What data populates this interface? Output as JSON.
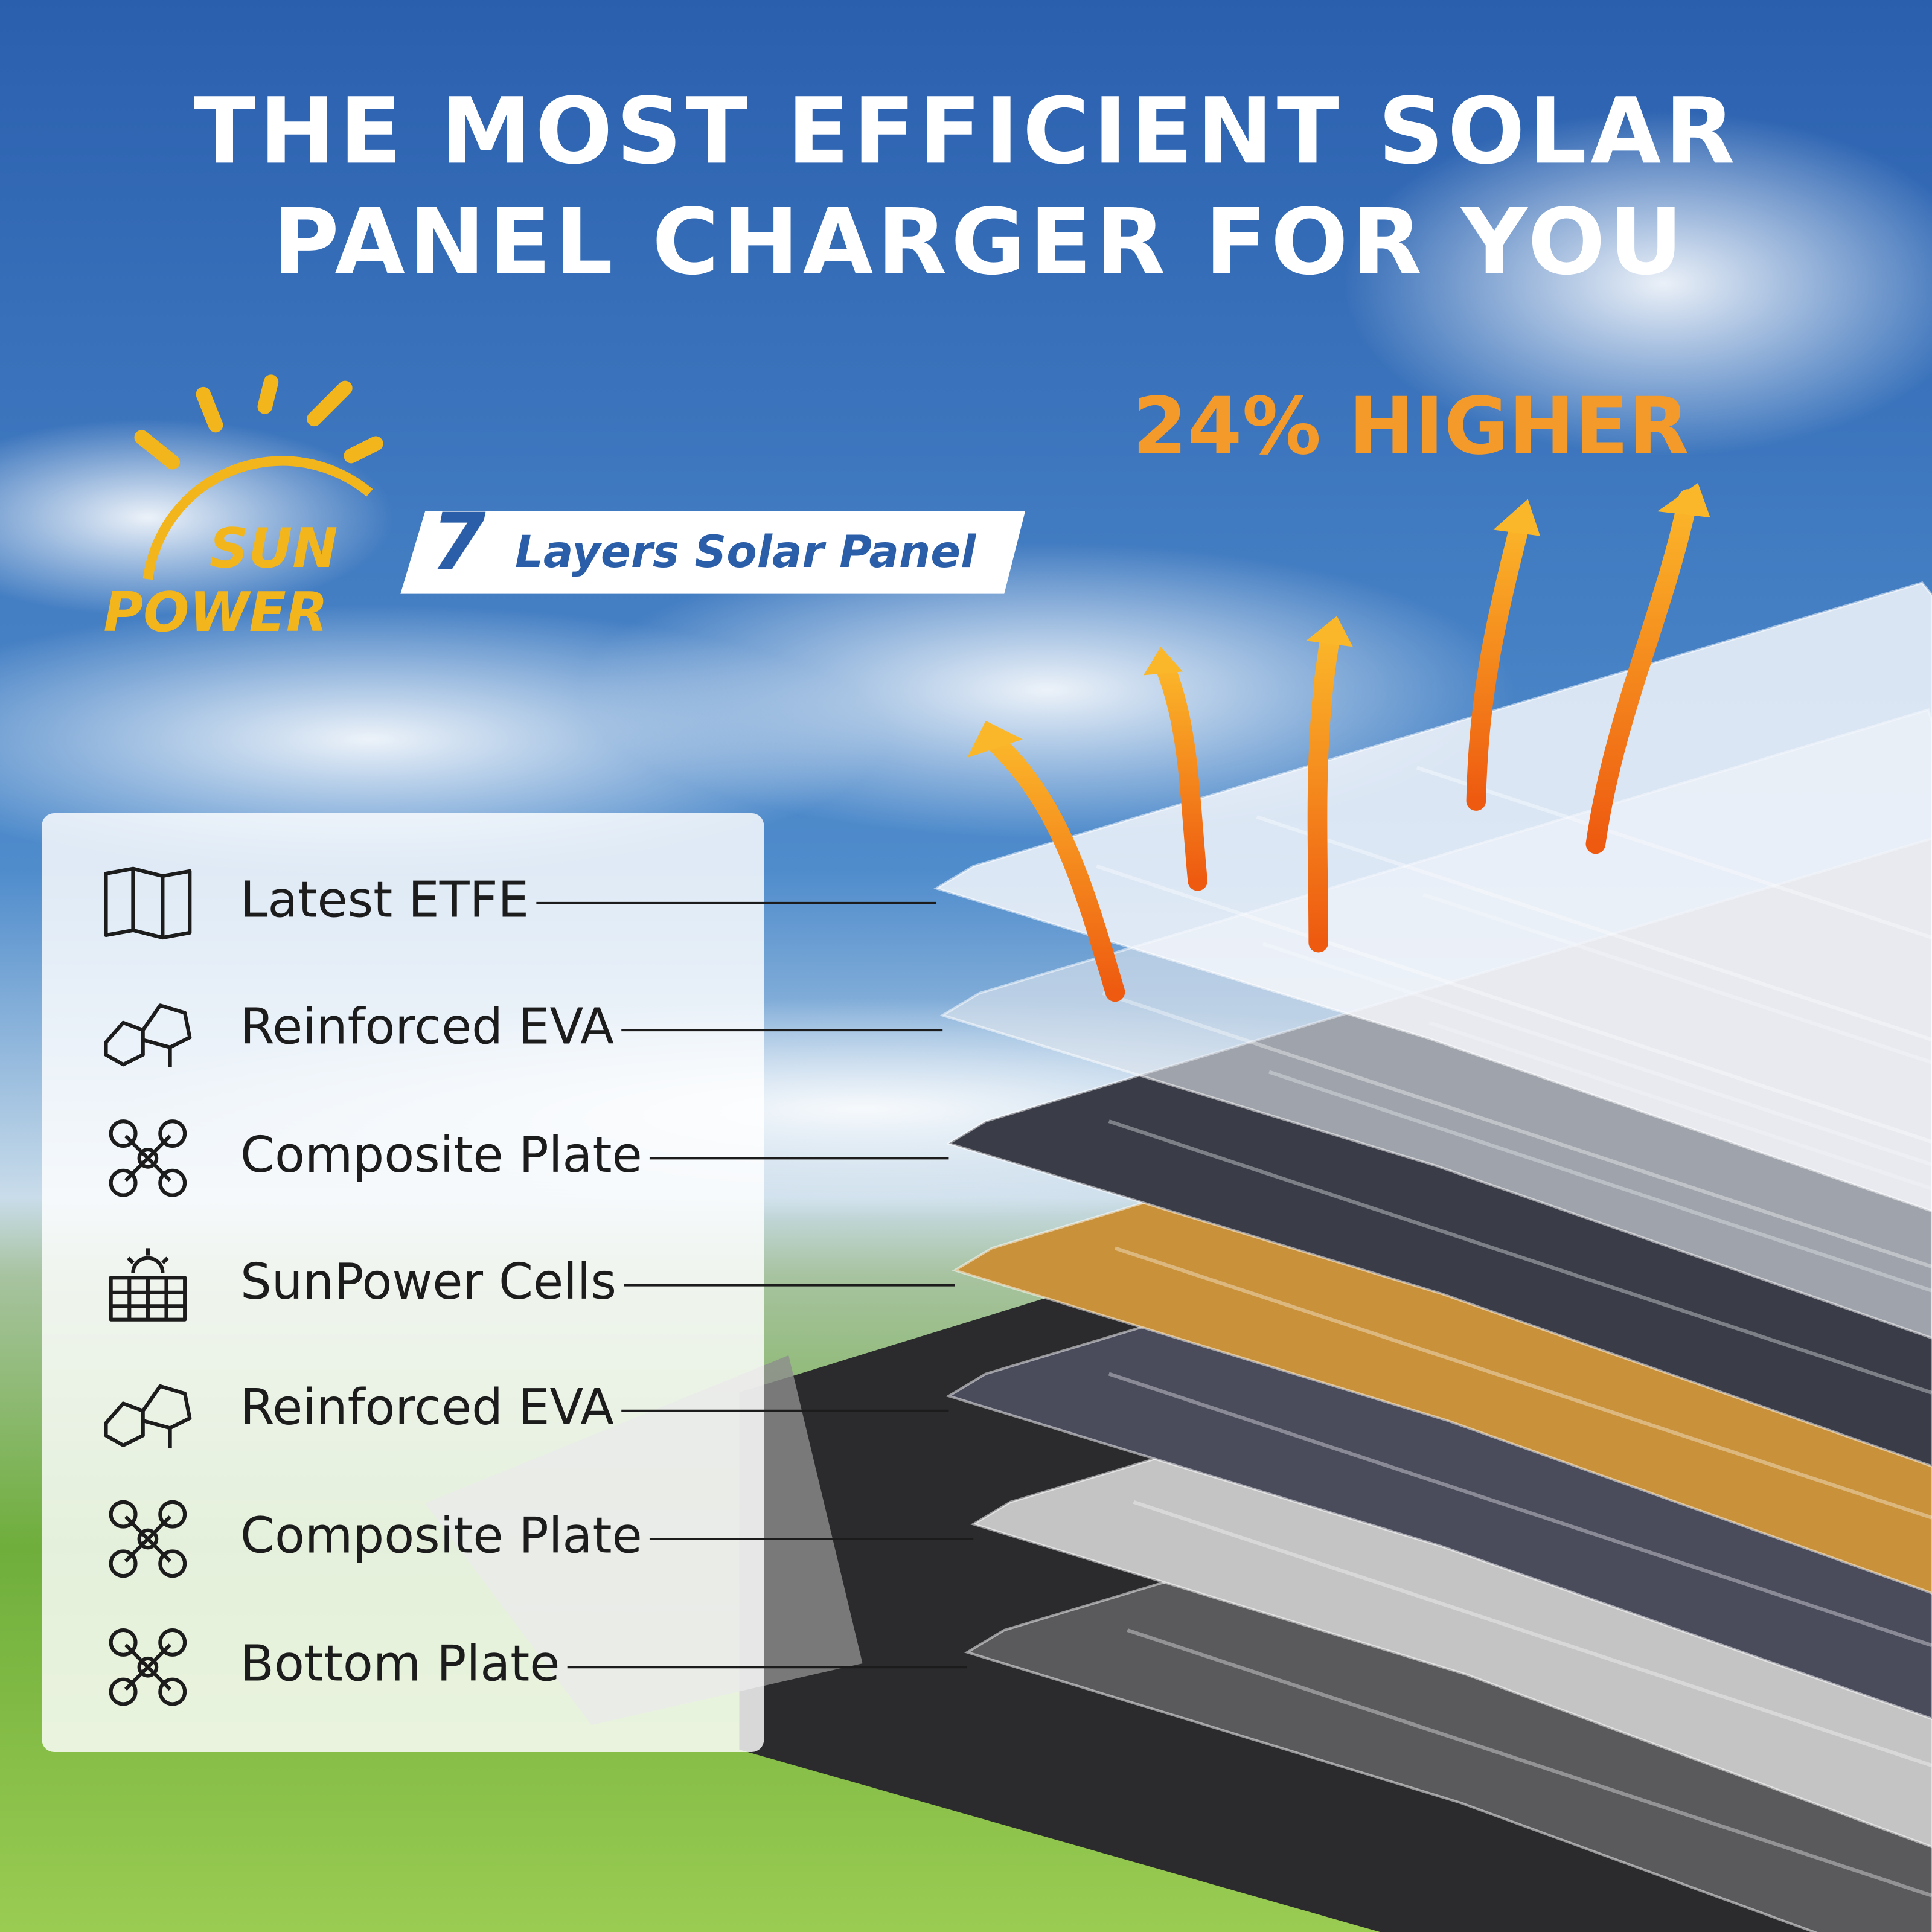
{
  "header": {
    "title": [
      "THE MOST EFFICIENT SOLAR",
      "PANEL CHARGER FOR YOU"
    ]
  },
  "badge": "24% HIGHER",
  "logo": {
    "line1": "SUN",
    "line2": "POWER"
  },
  "banner": {
    "number": "7",
    "text": "Layers Solar Panel"
  },
  "layers": [
    "Latest ETFE",
    "Reinforced EVA",
    "Composite Plate",
    "SunPower Cells",
    "Reinforced EVA",
    "Composite Plate",
    "Bottom Plate"
  ]
}
